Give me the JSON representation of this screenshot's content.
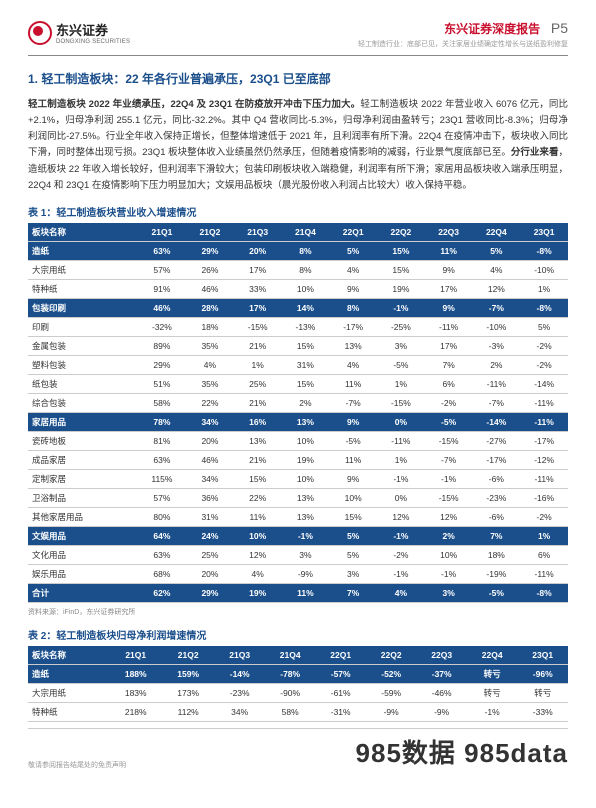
{
  "header": {
    "logo_cn": "东兴证券",
    "logo_en": "DONGXING SECURITIES",
    "report_title": "东兴证券深度报告",
    "page_num": "P5",
    "subtitle": "轻工制造行业：底部已见，关注家居业绩确定性增长与送纸盈利修复"
  },
  "section_title_color": "#1b4f8b",
  "section1": {
    "title": "1. 轻工制造板块：22 年各行业普遍承压，23Q1 已至底部",
    "para_html": "<span class='bold'>轻工制造板块 2022 年业绩承压，22Q4 及 23Q1 在防疫放开冲击下压力加大。</span>轻工制造板块 2022 年营业收入 6076 亿元，同比+2.1%，归母净利润 255.1 亿元，同比-32.2%。其中 Q4 营收同比-5.3%，归母净利润由盈转亏；23Q1 营收同比-8.3%；归母净利润同比-27.5%。行业全年收入保持正增长，但整体增速低于 2021 年，且利润率有所下滑。22Q4 在疫情冲击下，板块收入同比下滑，同时整体出现亏损。23Q1 板块整体收入业绩虽然仍然承压，但随着疫情影响的减弱，行业景气度底部已至。<span class='bold'>分行业来看</span>，造纸板块 22 年收入增长较好，但利润率下滑较大；包装印刷板块收入端稳健，利润率有所下滑；家居用品板块收入端承压明显，22Q4 和 23Q1 在疫情影响下压力明显加大；文娱用品板块（晨光股份收入利润占比较大）收入保持平稳。"
  },
  "table1": {
    "caption": "表 1：轻工制造板块营业收入增速情况",
    "header_bg": "#1b4f8b",
    "section_bg": "#1b4f8b",
    "columns": [
      "板块名称",
      "21Q1",
      "21Q2",
      "21Q3",
      "21Q4",
      "22Q1",
      "22Q2",
      "22Q3",
      "22Q4",
      "23Q1"
    ],
    "rows": [
      {
        "type": "section",
        "cells": [
          "造纸",
          "63%",
          "29%",
          "20%",
          "8%",
          "5%",
          "15%",
          "11%",
          "5%",
          "-8%"
        ]
      },
      {
        "type": "data",
        "cells": [
          "大宗用纸",
          "57%",
          "26%",
          "17%",
          "8%",
          "4%",
          "15%",
          "9%",
          "4%",
          "-10%"
        ]
      },
      {
        "type": "data",
        "cells": [
          "特种纸",
          "91%",
          "46%",
          "33%",
          "10%",
          "9%",
          "19%",
          "17%",
          "12%",
          "1%"
        ]
      },
      {
        "type": "section",
        "cells": [
          "包装印刷",
          "46%",
          "28%",
          "17%",
          "14%",
          "8%",
          "-1%",
          "9%",
          "-7%",
          "-8%"
        ]
      },
      {
        "type": "data",
        "cells": [
          "印刷",
          "-32%",
          "18%",
          "-15%",
          "-13%",
          "-17%",
          "-25%",
          "-11%",
          "-10%",
          "5%"
        ]
      },
      {
        "type": "data",
        "cells": [
          "金属包装",
          "89%",
          "35%",
          "21%",
          "15%",
          "13%",
          "3%",
          "17%",
          "-3%",
          "-2%"
        ]
      },
      {
        "type": "data",
        "cells": [
          "塑料包装",
          "29%",
          "4%",
          "1%",
          "31%",
          "4%",
          "-5%",
          "7%",
          "2%",
          "-2%"
        ]
      },
      {
        "type": "data",
        "cells": [
          "纸包装",
          "51%",
          "35%",
          "25%",
          "15%",
          "11%",
          "1%",
          "6%",
          "-11%",
          "-14%"
        ]
      },
      {
        "type": "data",
        "cells": [
          "综合包装",
          "58%",
          "22%",
          "21%",
          "2%",
          "-7%",
          "-15%",
          "-2%",
          "-7%",
          "-11%"
        ]
      },
      {
        "type": "section",
        "cells": [
          "家居用品",
          "78%",
          "34%",
          "16%",
          "13%",
          "9%",
          "0%",
          "-5%",
          "-14%",
          "-11%"
        ]
      },
      {
        "type": "data",
        "cells": [
          "瓷砖地板",
          "81%",
          "20%",
          "13%",
          "10%",
          "-5%",
          "-11%",
          "-15%",
          "-27%",
          "-17%"
        ]
      },
      {
        "type": "data",
        "cells": [
          "成品家居",
          "63%",
          "46%",
          "21%",
          "19%",
          "11%",
          "1%",
          "-7%",
          "-17%",
          "-12%"
        ]
      },
      {
        "type": "data",
        "cells": [
          "定制家居",
          "115%",
          "34%",
          "15%",
          "10%",
          "9%",
          "-1%",
          "-1%",
          "-6%",
          "-11%"
        ]
      },
      {
        "type": "data",
        "cells": [
          "卫浴制品",
          "57%",
          "36%",
          "22%",
          "13%",
          "10%",
          "0%",
          "-15%",
          "-23%",
          "-16%"
        ]
      },
      {
        "type": "data",
        "cells": [
          "其他家居用品",
          "80%",
          "31%",
          "11%",
          "13%",
          "15%",
          "12%",
          "12%",
          "-6%",
          "-2%"
        ]
      },
      {
        "type": "section",
        "cells": [
          "文娱用品",
          "64%",
          "24%",
          "10%",
          "-1%",
          "5%",
          "-1%",
          "2%",
          "7%",
          "1%"
        ]
      },
      {
        "type": "data",
        "cells": [
          "文化用品",
          "63%",
          "25%",
          "12%",
          "3%",
          "5%",
          "-2%",
          "10%",
          "18%",
          "6%"
        ]
      },
      {
        "type": "data",
        "cells": [
          "娱乐用品",
          "68%",
          "20%",
          "4%",
          "-9%",
          "3%",
          "-1%",
          "-1%",
          "-19%",
          "-11%"
        ]
      },
      {
        "type": "section",
        "cells": [
          "合计",
          "62%",
          "29%",
          "19%",
          "11%",
          "7%",
          "4%",
          "3%",
          "-5%",
          "-8%"
        ]
      }
    ],
    "source": "资料来源：iFinD，东兴证券研究所"
  },
  "table2": {
    "caption": "表 2：轻工制造板块归母净利润增速情况",
    "header_bg": "#1b4f8b",
    "section_bg": "#1b4f8b",
    "columns": [
      "板块名称",
      "21Q1",
      "21Q2",
      "21Q3",
      "21Q4",
      "22Q1",
      "22Q2",
      "22Q3",
      "22Q4",
      "23Q1"
    ],
    "rows": [
      {
        "type": "section",
        "cells": [
          "造纸",
          "188%",
          "159%",
          "-14%",
          "-78%",
          "-57%",
          "-52%",
          "-37%",
          "转亏",
          "-96%"
        ]
      },
      {
        "type": "data",
        "cells": [
          "大宗用纸",
          "183%",
          "173%",
          "-23%",
          "-90%",
          "-61%",
          "-59%",
          "-46%",
          "转亏",
          "转亏"
        ]
      },
      {
        "type": "data",
        "cells": [
          "特种纸",
          "218%",
          "112%",
          "34%",
          "58%",
          "-31%",
          "-9%",
          "-9%",
          "-1%",
          "-33%"
        ]
      }
    ]
  },
  "footer": {
    "disclaimer": "敬请参阅报告结尾处的免责声明",
    "watermark": "985数据 985data"
  }
}
